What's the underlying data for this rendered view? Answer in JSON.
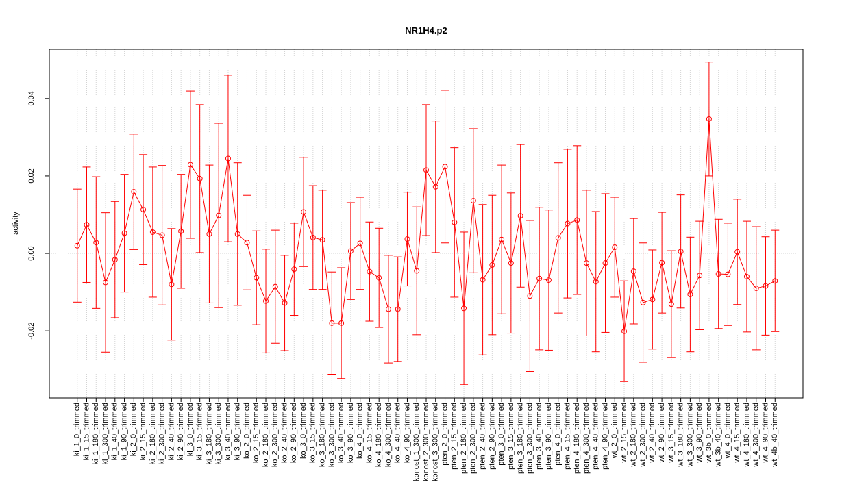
{
  "chart_data": {
    "type": "errorbar",
    "title": "NR1H4.p2",
    "y_label": "activity",
    "color": "#ff0000",
    "grid": true,
    "hline": 0,
    "ylim": [
      -0.0373,
      0.0527
    ],
    "yticks": [
      -0.02,
      {
        "value": 0,
        "label": "0.00"
      },
      0.02,
      0.04
    ],
    "categories": [
      "ki_1_0_trimmed",
      "ki_1_15_trimmed",
      "ki_1_180_trimmed",
      "ki_1_300_trimmed",
      "ki_1_40_trimmed",
      "ki_1_90_trimmed",
      "ki_2_0_trimmed",
      "ki_2_15_trimmed",
      "ki_2_180_trimmed",
      "ki_2_300_trimmed",
      "ki_2_40_trimmed",
      "ki_2_90_trimmed",
      "ki_3_0_trimmed",
      "ki_3_15_trimmed",
      "ki_3_180_trimmed",
      "ki_3_300_trimmed",
      "ki_3_40_trimmed",
      "ki_3_90_trimmed",
      "ko_2_0_trimmed",
      "ko_2_15_trimmed",
      "ko_2_180_trimmed",
      "ko_2_300_trimmed",
      "ko_2_40_trimmed",
      "ko_2_90_trimmed",
      "ko_3_0_trimmed",
      "ko_3_15_trimmed",
      "ko_3_180_trimmed",
      "ko_3_300_trimmed",
      "ko_3_40_trimmed",
      "ko_3_90_trimmed",
      "ko_4_0_trimmed",
      "ko_4_15_trimmed",
      "ko_4_180_trimmed",
      "ko_4_300_trimmed",
      "ko_4_40_trimmed",
      "ko_4_90_trimmed",
      "konost_1_300_trimmed",
      "konost_2_300_trimmed",
      "konost_3_300_trimmed",
      "pten_2_0_trimmed",
      "pten_2_15_trimmed",
      "pten_2_180_trimmed",
      "pten_2_300_trimmed",
      "pten_2_40_trimmed",
      "pten_2_90_trimmed",
      "pten_3_0_trimmed",
      "pten_3_15_trimmed",
      "pten_3_180_trimmed",
      "pten_3_300_trimmed",
      "pten_3_40_trimmed",
      "pten_3_90_trimmed",
      "pten_4_0_trimmed",
      "pten_4_15_trimmed",
      "pten_4_180_trimmed",
      "pten_4_300_trimmed",
      "pten_4_40_trimmed",
      "pten_4_90_trimmed",
      "wt_2_0_trimmed",
      "wt_2_15_trimmed",
      "wt_2_180_trimmed",
      "wt_2_300_trimmed",
      "wt_2_40_trimmed",
      "wt_2_90_trimmed",
      "wt_3_15_trimmed",
      "wt_3_180_trimmed",
      "wt_3_300_trimmed",
      "wt_3_90_trimmed",
      "wt_3b_0_trimmed",
      "wt_3b_40_trimmed",
      "wt_4_0_trimmed",
      "wt_4_15_trimmed",
      "wt_4_180_trimmed",
      "wt_4_300_trimmed",
      "wt_4_90_trimmed",
      "wt_4b_40_trimmed"
    ],
    "values": [
      0.002,
      0.0074,
      0.0028,
      -0.0075,
      -0.0016,
      0.0052,
      0.0159,
      0.0113,
      0.0055,
      0.0047,
      -0.008,
      0.0057,
      0.0229,
      0.0193,
      0.005,
      0.0098,
      0.0245,
      0.005,
      0.0028,
      -0.0063,
      -0.0123,
      -0.0086,
      -0.0128,
      -0.0041,
      0.0107,
      0.0041,
      0.0035,
      -0.018,
      -0.018,
      0.0006,
      0.0026,
      -0.0047,
      -0.0063,
      -0.0144,
      -0.0144,
      0.0037,
      -0.0045,
      0.0215,
      0.0172,
      0.0224,
      0.008,
      -0.0142,
      0.0136,
      -0.0068,
      -0.003,
      0.0036,
      -0.0025,
      0.0097,
      -0.011,
      -0.0065,
      -0.0069,
      0.004,
      0.0077,
      0.0086,
      -0.0025,
      -0.0073,
      -0.0025,
      0.0016,
      -0.0201,
      -0.0046,
      -0.0127,
      -0.0119,
      -0.0024,
      -0.0131,
      0.0005,
      -0.0106,
      -0.0057,
      0.0347,
      -0.0053,
      -0.0054,
      0.0004,
      -0.006,
      -0.009,
      -0.0084,
      -0.0071
    ],
    "errors": [
      0.0146,
      0.0149,
      0.017,
      0.018,
      0.015,
      0.0152,
      0.0149,
      0.0142,
      0.0168,
      0.018,
      0.0144,
      0.0147,
      0.019,
      0.0191,
      0.0178,
      0.0238,
      0.0215,
      0.0184,
      0.0122,
      0.0121,
      0.0134,
      0.0146,
      0.0123,
      0.0119,
      0.0141,
      0.0134,
      0.0128,
      0.0132,
      0.0143,
      0.0125,
      0.0119,
      0.0128,
      0.0128,
      0.0139,
      0.0135,
      0.0121,
      0.0165,
      0.0169,
      0.017,
      0.0197,
      0.0193,
      0.0197,
      0.0186,
      0.0194,
      0.018,
      0.0192,
      0.0181,
      0.0184,
      0.0195,
      0.0184,
      0.0181,
      0.0194,
      0.0192,
      0.0192,
      0.0188,
      0.0181,
      0.0179,
      0.0129,
      0.013,
      0.0136,
      0.0154,
      0.0128,
      0.013,
      0.0138,
      0.0146,
      0.0148,
      0.014,
      0.0147,
      0.0141,
      0.0132,
      0.0136,
      0.0143,
      0.0159,
      0.0127,
      0.0131
    ]
  }
}
